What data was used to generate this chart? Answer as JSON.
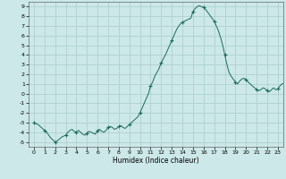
{
  "title": "",
  "xlabel": "Humidex (Indice chaleur)",
  "ylabel": "",
  "bg_color": "#cce8e8",
  "grid_color": "#aacccc",
  "line_color": "#1a6b5a",
  "marker_color": "#1a6b5a",
  "xlim": [
    -0.5,
    23.5
  ],
  "ylim": [
    -5.5,
    9.5
  ],
  "yticks": [
    -5,
    -4,
    -3,
    -2,
    -1,
    0,
    1,
    2,
    3,
    4,
    5,
    6,
    7,
    8,
    9
  ],
  "xticks": [
    0,
    1,
    2,
    3,
    4,
    5,
    6,
    7,
    8,
    9,
    10,
    11,
    12,
    13,
    14,
    15,
    16,
    17,
    18,
    19,
    20,
    21,
    22,
    23
  ],
  "x": [
    0,
    0.2,
    0.4,
    0.6,
    0.8,
    1.0,
    1.2,
    1.4,
    1.6,
    1.8,
    2.0,
    2.2,
    2.4,
    2.6,
    2.8,
    3.0,
    3.2,
    3.4,
    3.6,
    3.8,
    4.0,
    4.2,
    4.4,
    4.6,
    4.8,
    5.0,
    5.2,
    5.4,
    5.6,
    5.8,
    6.0,
    6.2,
    6.4,
    6.6,
    6.8,
    7.0,
    7.2,
    7.4,
    7.6,
    7.8,
    8.0,
    8.2,
    8.4,
    8.6,
    8.8,
    9.0,
    9.2,
    9.4,
    9.6,
    9.8,
    10.0,
    10.2,
    10.4,
    10.6,
    10.8,
    11.0,
    11.2,
    11.4,
    11.6,
    11.8,
    12.0,
    12.2,
    12.4,
    12.6,
    12.8,
    13.0,
    13.2,
    13.4,
    13.6,
    13.8,
    14.0,
    14.2,
    14.4,
    14.6,
    14.8,
    15.0,
    15.2,
    15.4,
    15.6,
    15.8,
    16.0,
    16.2,
    16.4,
    16.6,
    16.8,
    17.0,
    17.2,
    17.4,
    17.6,
    17.8,
    18.0,
    18.2,
    18.4,
    18.6,
    18.8,
    19.0,
    19.2,
    19.4,
    19.6,
    19.8,
    20.0,
    20.2,
    20.4,
    20.6,
    20.8,
    21.0,
    21.2,
    21.4,
    21.6,
    21.8,
    22.0,
    22.2,
    22.4,
    22.6,
    22.8,
    23.0,
    23.2,
    23.4,
    23.6
  ],
  "y": [
    -3.0,
    -3.1,
    -3.2,
    -3.4,
    -3.6,
    -3.8,
    -4.0,
    -4.3,
    -4.6,
    -4.8,
    -5.0,
    -4.9,
    -4.7,
    -4.5,
    -4.4,
    -4.3,
    -4.0,
    -3.8,
    -3.7,
    -3.9,
    -4.0,
    -3.8,
    -4.0,
    -4.2,
    -4.3,
    -4.1,
    -3.9,
    -4.0,
    -4.1,
    -4.2,
    -3.8,
    -3.7,
    -3.9,
    -4.0,
    -3.8,
    -3.5,
    -3.4,
    -3.5,
    -3.7,
    -3.6,
    -3.4,
    -3.3,
    -3.5,
    -3.6,
    -3.4,
    -3.2,
    -3.0,
    -2.8,
    -2.6,
    -2.4,
    -2.0,
    -1.5,
    -1.0,
    -0.5,
    0.0,
    0.8,
    1.2,
    1.8,
    2.2,
    2.6,
    3.2,
    3.6,
    4.0,
    4.5,
    5.0,
    5.5,
    6.0,
    6.5,
    6.9,
    7.2,
    7.4,
    7.5,
    7.6,
    7.7,
    7.8,
    8.5,
    8.8,
    9.0,
    9.1,
    9.0,
    8.9,
    8.7,
    8.4,
    8.1,
    7.8,
    7.5,
    7.0,
    6.5,
    5.8,
    5.0,
    4.0,
    3.0,
    2.2,
    1.8,
    1.5,
    1.2,
    1.0,
    1.3,
    1.5,
    1.6,
    1.4,
    1.2,
    1.0,
    0.8,
    0.6,
    0.4,
    0.3,
    0.4,
    0.6,
    0.5,
    0.3,
    0.2,
    0.4,
    0.6,
    0.4,
    0.5,
    0.8,
    1.0,
    1.1
  ]
}
